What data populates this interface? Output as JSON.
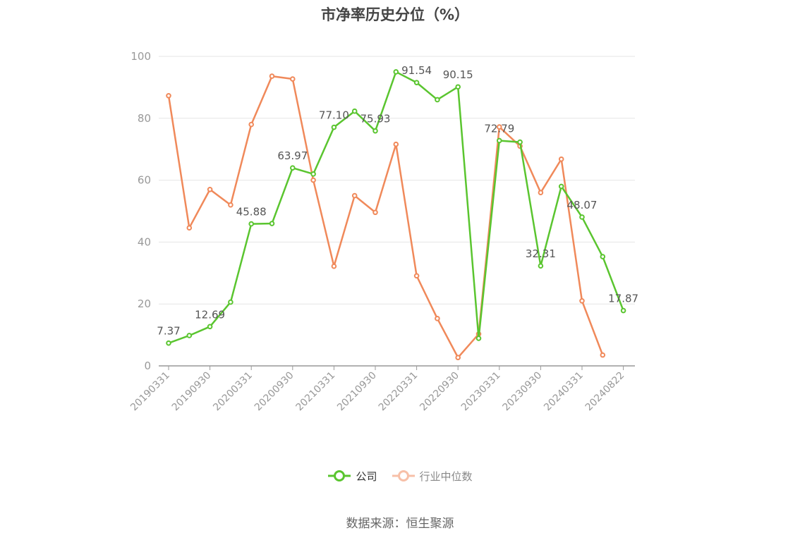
{
  "chart_data": {
    "type": "line",
    "title": "市净率历史分位（%）",
    "ylim": [
      0,
      100
    ],
    "yticks": [
      0,
      20,
      40,
      60,
      80,
      100
    ],
    "x": [
      "20190331",
      "20190630",
      "20190930",
      "20191231",
      "20200331",
      "20200630",
      "20200930",
      "20201231",
      "20210331",
      "20210630",
      "20210930",
      "20211231",
      "20220331",
      "20220630",
      "20220930",
      "20221231",
      "20230331",
      "20230630",
      "20230930",
      "20231231",
      "20240331",
      "20240630",
      "20240822"
    ],
    "x_tick_labels": [
      "20190331",
      "20190930",
      "20200331",
      "20200930",
      "20210331",
      "20210930",
      "20220331",
      "20220930",
      "20230331",
      "20230930",
      "20240331",
      "20240822"
    ],
    "grid": true,
    "legend_position": "bottom",
    "series": [
      {
        "name": "公司",
        "color": "#5ac52f",
        "values": [
          7.37,
          9.8,
          12.69,
          20.6,
          45.88,
          46.0,
          63.97,
          62.0,
          77.1,
          82.3,
          75.93,
          95.0,
          91.54,
          86.0,
          90.15,
          8.9,
          72.79,
          72.3,
          32.31,
          58.0,
          48.07,
          35.3,
          17.87
        ],
        "labels": {
          "0": "7.37",
          "2": "12.69",
          "4": "45.88",
          "6": "63.97",
          "8": "77.10",
          "10": "75.93",
          "12": "91.54",
          "14": "90.15",
          "16": "72.79",
          "18": "32.31",
          "20": "48.07",
          "22": "17.87"
        }
      },
      {
        "name": "行业中位数",
        "color": "#f0895a",
        "values": [
          87.3,
          44.6,
          57.0,
          52.0,
          78.0,
          93.6,
          92.7,
          60.0,
          32.2,
          55.0,
          49.6,
          71.6,
          29.1,
          15.3,
          2.7,
          10.3,
          77.2,
          71.0,
          56.0,
          66.8,
          21.0,
          3.5,
          null
        ]
      }
    ]
  },
  "source_text": "数据来源：恒生聚源"
}
